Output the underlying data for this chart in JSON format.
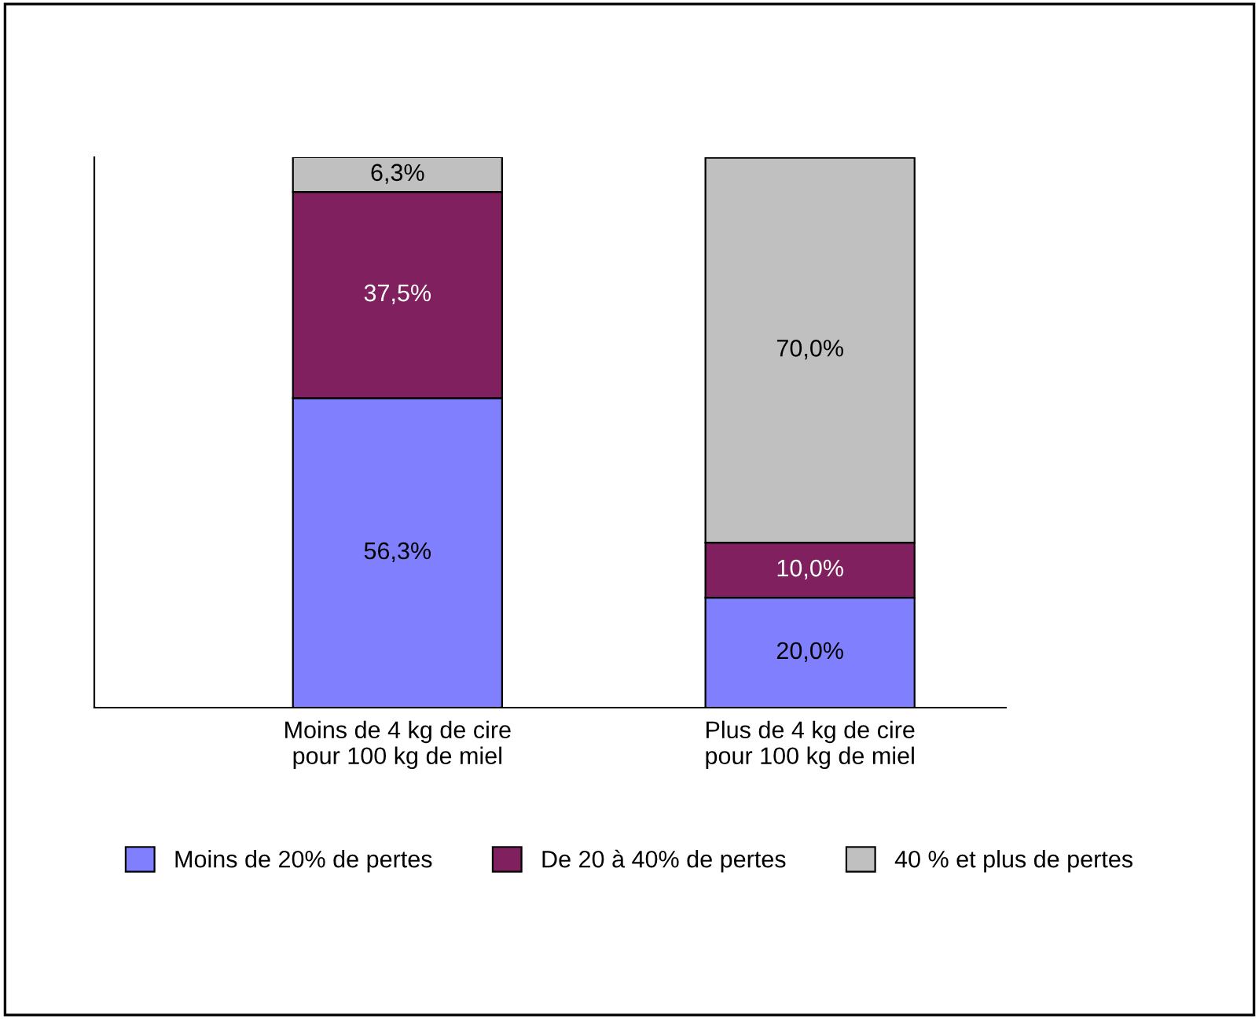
{
  "chart_data": {
    "type": "bar",
    "stacked": true,
    "categories": [
      "Moins de 4 kg de cire\npour 100 kg de miel",
      "Plus de 4 kg de cire\npour 100 kg de miel"
    ],
    "series": [
      {
        "name": "Moins de 20% de pertes",
        "color": "#8080ff",
        "values": [
          56.3,
          20.0
        ],
        "value_labels": [
          "56,3%",
          "20,0%"
        ]
      },
      {
        "name": "De 20 à 40% de pertes",
        "color": "#80205f",
        "values": [
          37.5,
          10.0
        ],
        "value_labels": [
          "37,5%",
          "10,0%"
        ]
      },
      {
        "name": "40 % et plus de pertes",
        "color": "#c0c0c0",
        "values": [
          6.3,
          70.0
        ],
        "value_labels": [
          "6,3%",
          "70,0%"
        ]
      }
    ],
    "legend": "bottom",
    "grid": false
  }
}
